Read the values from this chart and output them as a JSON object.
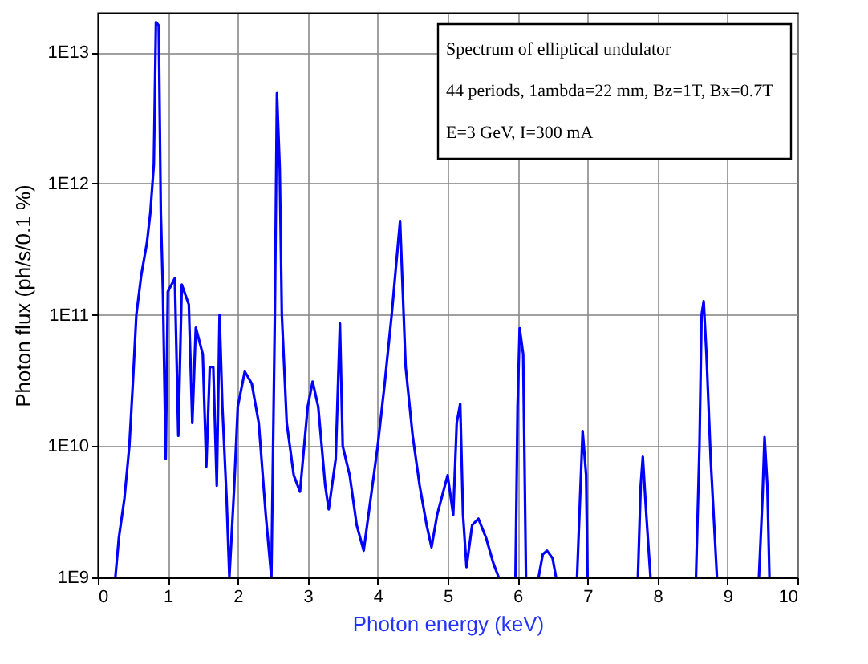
{
  "chart_data": {
    "type": "line",
    "xlabel": "Photon energy (keV)",
    "ylabel": "Photon flux (ph/s/0.1 %)",
    "annotations": [
      "Spectrum of elliptical undulator",
      "44 periods,  1ambda=22 mm, Bz=1T, Bx=0.7T",
      "E=3 GeV, I=300 mA"
    ],
    "series": [
      {
        "color": "#0000ff",
        "x": [
          0.25,
          0.3,
          0.38,
          0.45,
          0.5,
          0.55,
          0.62,
          0.7,
          0.75,
          0.8,
          0.83,
          0.87,
          0.9,
          0.93,
          0.97,
          1.0,
          1.1,
          1.15,
          1.2,
          1.3,
          1.35,
          1.4,
          1.5,
          1.55,
          1.6,
          1.65,
          1.7,
          1.74,
          1.78,
          1.84,
          1.88,
          1.95,
          2.0,
          2.1,
          2.2,
          2.3,
          2.4,
          2.48,
          2.53,
          2.56,
          2.6,
          2.63,
          2.7,
          2.8,
          2.89,
          3.0,
          3.07,
          3.15,
          3.25,
          3.3,
          3.4,
          3.46,
          3.5,
          3.6,
          3.7,
          3.8,
          3.9,
          4.0,
          4.1,
          4.2,
          4.32,
          4.4,
          4.5,
          4.6,
          4.7,
          4.77,
          4.85,
          5.0,
          5.08,
          5.13,
          5.18,
          5.22,
          5.27,
          5.35,
          5.44,
          5.55,
          5.65,
          5.73,
          5.85,
          5.97,
          6.0,
          6.03,
          6.08,
          6.12,
          6.2,
          6.3,
          6.36,
          6.42,
          6.5,
          6.55,
          6.7,
          6.85,
          6.9,
          6.93,
          6.98,
          7.0,
          7.4,
          7.72,
          7.76,
          7.79,
          7.84,
          7.9,
          8.2,
          8.55,
          8.6,
          8.63,
          8.66,
          8.7,
          8.76,
          8.85,
          9.2,
          9.45,
          9.5,
          9.53,
          9.57,
          9.6
        ],
        "values": [
          1000000000.0,
          2000000000.0,
          4000000000.0,
          10000000000.0,
          30000000000.0,
          100000000000.0,
          200000000000.0,
          350000000000.0,
          600000000000.0,
          1400000000000.0,
          17000000000000.0,
          16000000000000.0,
          600000000000.0,
          150000000000.0,
          8000000000.0,
          150000000000.0,
          190000000000.0,
          12000000000.0,
          170000000000.0,
          120000000000.0,
          15000000000.0,
          80000000000.0,
          50000000000.0,
          7000000000.0,
          40000000000.0,
          40000000000.0,
          5000000000.0,
          100000000000.0,
          20000000000.0,
          4000000000.0,
          1000000000.0,
          5000000000.0,
          20000000000.0,
          37000000000.0,
          30000000000.0,
          15000000000.0,
          3000000000.0,
          1000000000.0,
          100000000000.0,
          4900000000000.0,
          1300000000000.0,
          100000000000.0,
          15000000000.0,
          6000000000.0,
          4500000000.0,
          20000000000.0,
          31000000000.0,
          20000000000.0,
          5000000000.0,
          3300000000.0,
          8000000000.0,
          86000000000.0,
          10000000000.0,
          6000000000.0,
          2500000000.0,
          1600000000.0,
          4000000000.0,
          10000000000.0,
          30000000000.0,
          100000000000.0,
          520000000000.0,
          40000000000.0,
          12000000000.0,
          5000000000.0,
          2500000000.0,
          1700000000.0,
          3000000000.0,
          6000000000.0,
          3000000000.0,
          15000000000.0,
          21000000000.0,
          3000000000.0,
          1200000000.0,
          2500000000.0,
          2800000000.0,
          2000000000.0,
          1300000000.0,
          1000000000.0,
          null,
          1000000000.0,
          20000000000.0,
          79000000000.0,
          50000000000.0,
          1000000000.0,
          null,
          1000000000.0,
          1500000000.0,
          1600000000.0,
          1400000000.0,
          1000000000.0,
          null,
          1000000000.0,
          5000000000.0,
          13000000000.0,
          6000000000.0,
          1000000000.0,
          null,
          1000000000.0,
          5000000000.0,
          8300000000.0,
          3000000000.0,
          1000000000.0,
          null,
          1000000000.0,
          10000000000.0,
          100000000000.0,
          127000000000.0,
          50000000000.0,
          8000000000.0,
          1000000000.0,
          null,
          1000000000.0,
          4000000000.0,
          11700000000.0,
          5000000000.0,
          1000000000.0
        ]
      }
    ],
    "log": "y",
    "xlim": [
      0,
      10
    ],
    "xticks": [
      0,
      1,
      2,
      3,
      4,
      5,
      6,
      7,
      8,
      9,
      10
    ],
    "ylim": [
      1000000000.0,
      20000000000000.0
    ],
    "yticks": [
      {
        "value": 1000000000.0,
        "label": "1E9"
      },
      {
        "value": 10000000000.0,
        "label": "1E10"
      },
      {
        "value": 100000000000.0,
        "label": "1E11"
      },
      {
        "value": 1000000000000.0,
        "label": "1E12"
      },
      {
        "value": 10000000000000.0,
        "label": "1E13"
      }
    ],
    "grid": true,
    "line_style": "solid",
    "marker": "none"
  }
}
